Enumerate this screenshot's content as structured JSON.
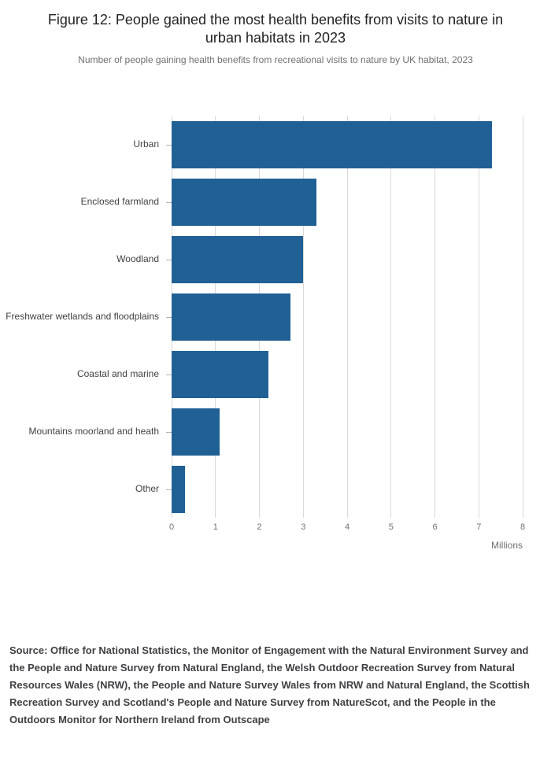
{
  "header": {
    "title": "Figure 12: People gained the most health benefits from visits to nature in urban habitats in 2023",
    "subtitle": "Number of people gaining health benefits from recreational visits to nature by UK habitat, 2023"
  },
  "chart_data": {
    "type": "bar",
    "orientation": "horizontal",
    "title": "Figure 12: People gained the most health benefits from visits to nature in urban habitats in 2023",
    "subtitle": "Number of people gaining health benefits from recreational visits to nature by UK habitat, 2023",
    "categories": [
      "Urban",
      "Enclosed farmland",
      "Woodland",
      "Freshwater wetlands and floodplains",
      "Coastal and marine",
      "Mountains moorland and heath",
      "Other"
    ],
    "values": [
      7.3,
      3.3,
      3.0,
      2.7,
      2.2,
      1.1,
      0.3
    ],
    "xlim": [
      0,
      8
    ],
    "x_ticks": [
      0,
      1,
      2,
      3,
      4,
      5,
      6,
      7,
      8
    ],
    "x_unit_label": "Millions",
    "xlabel": "Millions",
    "ylabel": "",
    "bar_color": "#206095",
    "grid": true,
    "legend": "none"
  },
  "source": {
    "text": "Source: Office for National Statistics, the Monitor of Engagement with the Natural Environment Survey and the People and Nature Survey from Natural England, the Welsh Outdoor Recreation Survey from Natural Resources Wales (NRW), the People and Nature Survey Wales from NRW and Natural England, the Scottish Recreation Survey and Scotland's People and Nature Survey from NatureScot, and the People in the Outdoors Monitor for Northern Ireland from Outscape"
  }
}
